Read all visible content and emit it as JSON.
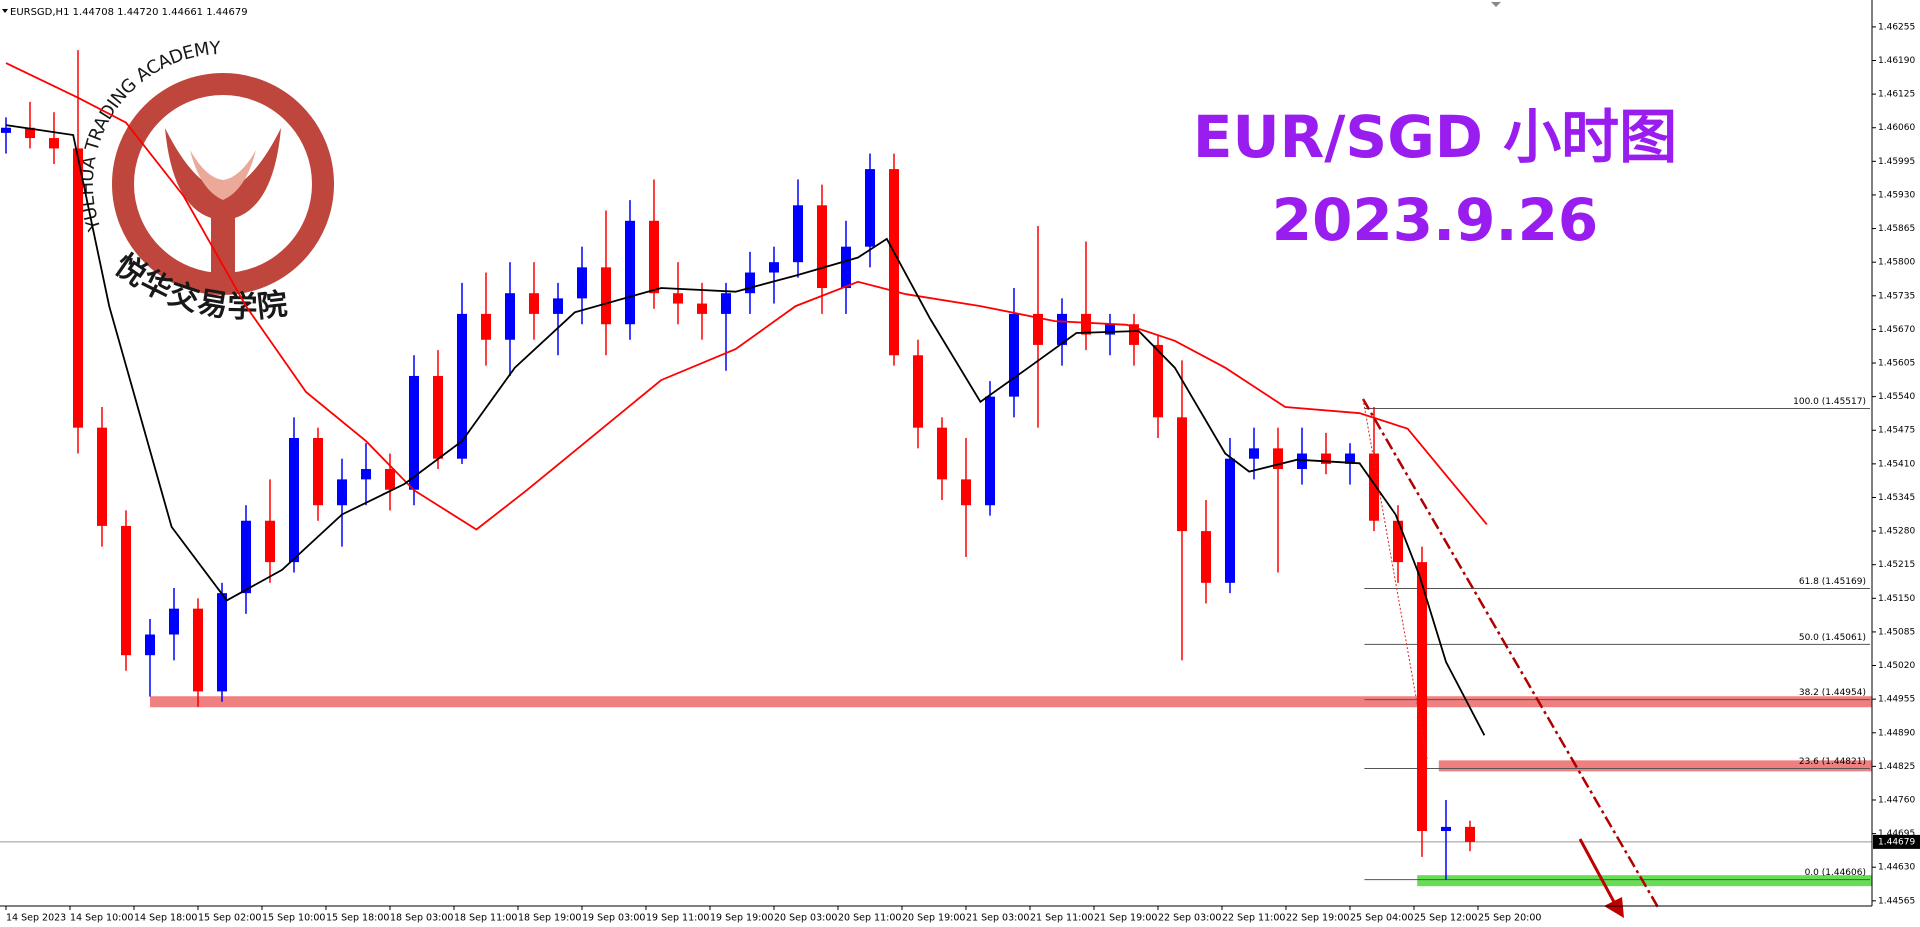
{
  "chart_data": {
    "type": "candlestick",
    "title": "EUR/SGD 小时图",
    "subtitle": "2023.9.26",
    "header": "EURSGD,H1  1.44708 1.44720 1.44661 1.44679",
    "watermark": {
      "arc": "YUEHUA TRADING ACADEMY",
      "name": "悦华交易学院"
    },
    "categories": [
      "14 Sep 2023",
      "14 Sep 10:00",
      "14 Sep 18:00",
      "15 Sep 02:00",
      "15 Sep 10:00",
      "15 Sep 18:00",
      "18 Sep 03:00",
      "18 Sep 11:00",
      "18 Sep 19:00",
      "19 Sep 03:00",
      "19 Sep 11:00",
      "19 Sep 19:00",
      "20 Sep 03:00",
      "20 Sep 11:00",
      "20 Sep 19:00",
      "21 Sep 03:00",
      "21 Sep 11:00",
      "21 Sep 19:00",
      "22 Sep 03:00",
      "22 Sep 11:00",
      "22 Sep 19:00",
      "25 Sep 04:00",
      "25 Sep 12:00",
      "25 Sep 20:00"
    ],
    "candles": [
      [
        1.4605,
        1.4608,
        1.4601,
        1.4606
      ],
      [
        1.4606,
        1.4611,
        1.4602,
        1.4604
      ],
      [
        1.4604,
        1.4609,
        1.4599,
        1.4602
      ],
      [
        1.4602,
        1.4621,
        1.4543,
        1.4548
      ],
      [
        1.4548,
        1.4552,
        1.4525,
        1.4529
      ],
      [
        1.4529,
        1.4532,
        1.4501,
        1.4504
      ],
      [
        1.4504,
        1.4511,
        1.4496,
        1.4508
      ],
      [
        1.4508,
        1.4517,
        1.4503,
        1.4513
      ],
      [
        1.4513,
        1.4515,
        1.4494,
        1.4497
      ],
      [
        1.4497,
        1.4518,
        1.4495,
        1.4516
      ],
      [
        1.4516,
        1.4533,
        1.4512,
        1.453
      ],
      [
        1.453,
        1.4538,
        1.4518,
        1.4522
      ],
      [
        1.4522,
        1.455,
        1.452,
        1.4546
      ],
      [
        1.4546,
        1.4548,
        1.453,
        1.4533
      ],
      [
        1.4533,
        1.4542,
        1.4525,
        1.4538
      ],
      [
        1.4538,
        1.4545,
        1.4533,
        1.454
      ],
      [
        1.454,
        1.4543,
        1.4532,
        1.4536
      ],
      [
        1.4536,
        1.4562,
        1.4533,
        1.4558
      ],
      [
        1.4558,
        1.4563,
        1.454,
        1.4542
      ],
      [
        1.4542,
        1.4576,
        1.4541,
        1.457
      ],
      [
        1.457,
        1.4578,
        1.456,
        1.4565
      ],
      [
        1.4565,
        1.458,
        1.4558,
        1.4574
      ],
      [
        1.4574,
        1.458,
        1.4565,
        1.457
      ],
      [
        1.457,
        1.4576,
        1.4562,
        1.4573
      ],
      [
        1.4573,
        1.4583,
        1.4568,
        1.4579
      ],
      [
        1.4579,
        1.459,
        1.4562,
        1.4568
      ],
      [
        1.4568,
        1.4592,
        1.4565,
        1.4588
      ],
      [
        1.4588,
        1.4596,
        1.4571,
        1.4574
      ],
      [
        1.4574,
        1.458,
        1.4568,
        1.4572
      ],
      [
        1.4572,
        1.4576,
        1.4565,
        1.457
      ],
      [
        1.457,
        1.4576,
        1.4559,
        1.4574
      ],
      [
        1.4574,
        1.4582,
        1.457,
        1.4578
      ],
      [
        1.4578,
        1.4583,
        1.4572,
        1.458
      ],
      [
        1.458,
        1.4596,
        1.4577,
        1.4591
      ],
      [
        1.4591,
        1.4595,
        1.457,
        1.4575
      ],
      [
        1.4575,
        1.4588,
        1.457,
        1.4583
      ],
      [
        1.4583,
        1.4601,
        1.4579,
        1.4598
      ],
      [
        1.4598,
        1.4601,
        1.456,
        1.4562
      ],
      [
        1.4562,
        1.4565,
        1.4544,
        1.4548
      ],
      [
        1.4548,
        1.455,
        1.4534,
        1.4538
      ],
      [
        1.4538,
        1.4546,
        1.4523,
        1.4533
      ],
      [
        1.4533,
        1.4557,
        1.4531,
        1.4554
      ],
      [
        1.4554,
        1.4575,
        1.455,
        1.457
      ],
      [
        1.457,
        1.4587,
        1.4548,
        1.4564
      ],
      [
        1.4564,
        1.4573,
        1.456,
        1.457
      ],
      [
        1.457,
        1.4584,
        1.4563,
        1.4566
      ],
      [
        1.4566,
        1.457,
        1.4562,
        1.4568
      ],
      [
        1.4568,
        1.457,
        1.456,
        1.4564
      ],
      [
        1.4564,
        1.4566,
        1.4546,
        1.455
      ],
      [
        1.455,
        1.4561,
        1.4503,
        1.4528
      ],
      [
        1.4528,
        1.4534,
        1.4514,
        1.4518
      ],
      [
        1.4518,
        1.4546,
        1.4516,
        1.4542
      ],
      [
        1.4542,
        1.4548,
        1.4538,
        1.4544
      ],
      [
        1.4544,
        1.4548,
        1.452,
        1.454
      ],
      [
        1.454,
        1.4548,
        1.4537,
        1.4543
      ],
      [
        1.4543,
        1.4547,
        1.4539,
        1.4541
      ],
      [
        1.4541,
        1.4545,
        1.4537,
        1.4543
      ],
      [
        1.4543,
        1.4552,
        1.4528,
        1.453
      ],
      [
        1.453,
        1.4533,
        1.4518,
        1.4522
      ],
      [
        1.4522,
        1.4525,
        1.4465,
        1.447
      ],
      [
        1.447,
        1.4476,
        1.44606,
        1.44708
      ],
      [
        1.44708,
        1.4472,
        1.44661,
        1.44679
      ]
    ],
    "up_color": "#0000ff",
    "down_color": "#ff0000",
    "series": [
      {
        "color": "#ff0000",
        "x": [
          0,
          3,
          5,
          7.4,
          10,
          12.5,
          15,
          17,
          19.6,
          21.7,
          24.2,
          27.3,
          30.4,
          32.9,
          35.5,
          37.5,
          40.6,
          43.7,
          46.7,
          48.7,
          50.8,
          53.3,
          56.4,
          58.4,
          61.7
        ],
        "values": [
          1.46185,
          1.46118,
          1.4607,
          1.45928,
          1.45715,
          1.45549,
          1.45454,
          1.45359,
          1.45283,
          1.45359,
          1.45454,
          1.45572,
          1.45632,
          1.45715,
          1.45762,
          1.45738,
          1.45715,
          1.45686,
          1.45679,
          1.45648,
          1.45596,
          1.4552,
          1.45508,
          1.45478,
          1.45293
        ]
      },
      {
        "color": "#000000",
        "x": [
          0,
          2.8,
          4.3,
          6.9,
          9.2,
          11.5,
          14,
          16.6,
          19,
          21.2,
          23.7,
          27.3,
          30.4,
          32.9,
          35.5,
          36.7,
          38.5,
          40.6,
          42.6,
          44.6,
          47.2,
          48.7,
          50.8,
          51.8,
          53.8,
          56.4,
          57.9,
          58.9,
          60,
          61.6
        ],
        "values": [
          1.46065,
          1.46046,
          1.45715,
          1.45288,
          1.45146,
          1.45205,
          1.45312,
          1.45371,
          1.45454,
          1.45596,
          1.45703,
          1.4575,
          1.45743,
          1.45774,
          1.45809,
          1.45845,
          1.45691,
          1.4553,
          1.45596,
          1.45663,
          1.45667,
          1.45596,
          1.4543,
          1.45395,
          1.45418,
          1.45411,
          1.45312,
          1.45193,
          1.45027,
          1.44885
        ]
      }
    ],
    "ylim": [
      1.44555,
      1.46307
    ],
    "yticks": [
      1.44565,
      {
        "value": 1.4463,
        "label": "1.44630"
      },
      1.44695,
      {
        "value": 1.4476,
        "label": "1.44760"
      },
      1.44825,
      {
        "value": 1.4489,
        "label": "1.44890"
      },
      1.44955,
      {
        "value": 1.4502,
        "label": "1.45020"
      },
      1.45085,
      {
        "value": 1.4515,
        "label": "1.45150"
      },
      1.45215,
      {
        "value": 1.4528,
        "label": "1.45280"
      },
      1.45345,
      {
        "value": 1.4541,
        "label": "1.45410"
      },
      1.45475,
      {
        "value": 1.4554,
        "label": "1.45540"
      },
      1.45605,
      {
        "value": 1.4567,
        "label": "1.45670"
      },
      1.45735,
      {
        "value": 1.458,
        "label": "1.45800"
      },
      1.45865,
      {
        "value": 1.4593,
        "label": "1.45930"
      },
      1.45995,
      {
        "value": 1.4606,
        "label": "1.46060"
      },
      1.46125,
      {
        "value": 1.4619,
        "label": "1.46190"
      },
      1.46255
    ],
    "current_price": 1.44679,
    "fib_start": 56.6,
    "fib": [
      {
        "label": "100.0 (1.45517)",
        "value": 1.45517
      },
      {
        "label": "61.8 (1.45169)",
        "value": 1.45169
      },
      {
        "label": "50.0 (1.45061)",
        "value": 1.45061
      },
      {
        "label": "38.2 (1.44954)",
        "value": 1.44954
      },
      {
        "label": "23.6 (1.44821)",
        "value": 1.44821
      },
      {
        "label": "0.0 (1.44606)",
        "value": 1.44606
      }
    ],
    "zones": [
      {
        "value": 1.4495,
        "start": 6,
        "color": "#f08080"
      },
      {
        "value": 1.44826,
        "start": 59.7,
        "color": "#f08080"
      },
      {
        "value": 1.44604,
        "start": 58.8,
        "color": "#66dd55"
      }
    ]
  }
}
